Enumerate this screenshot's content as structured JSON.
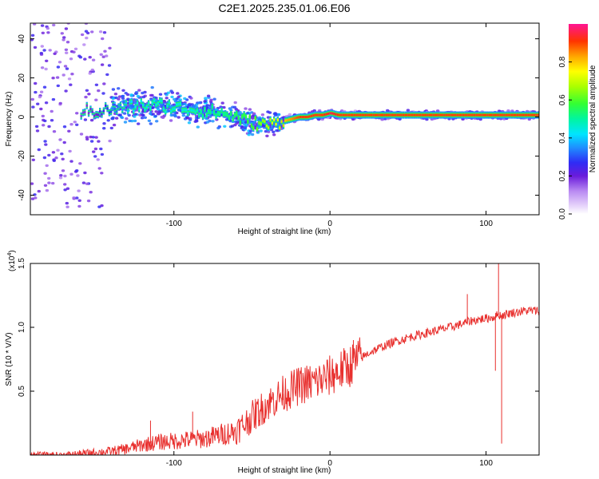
{
  "title": "C2E1.2025.235.01.06.E06",
  "chart_data": [
    {
      "type": "heatmap",
      "title": "C2E1.2025.235.01.06.E06",
      "xlabel": "Height of straight line (km)",
      "ylabel": "Frequency (Hz)",
      "xlim": [
        -192,
        134
      ],
      "ylim": [
        -50,
        48
      ],
      "x_ticks": [
        -100,
        0,
        100
      ],
      "x_tick_labels": [
        "-100",
        "0",
        "100"
      ],
      "y_ticks": [
        -40,
        -20,
        0,
        20,
        40
      ],
      "y_tick_labels": [
        "-40",
        "-20",
        "0",
        "20",
        "40"
      ],
      "colorbar": {
        "label": "Normalized spectral amplitude",
        "range": [
          0,
          1
        ],
        "ticks": [
          0.0,
          0.2,
          0.4,
          0.6,
          0.8
        ],
        "tick_labels": [
          "0.0",
          "0.2",
          "0.4",
          "0.6",
          "0.8"
        ]
      },
      "ridge": {
        "x": [
          -192,
          -150,
          -140,
          -130,
          -120,
          -110,
          -100,
          -90,
          -80,
          -70,
          -60,
          -50,
          -40,
          -35,
          -30,
          -25,
          -20,
          -15,
          -10,
          -5,
          0,
          5,
          10,
          20,
          40,
          60,
          80,
          90,
          100,
          110,
          120,
          134
        ],
        "freq": [
          3,
          3,
          4,
          5,
          6,
          6,
          5,
          4,
          3,
          2,
          0,
          -3,
          -4,
          -3,
          -2,
          -1,
          0,
          0,
          1,
          1,
          2,
          1,
          1,
          1,
          1,
          1,
          1,
          1,
          1,
          1,
          1,
          1
        ],
        "amplitude": [
          0.1,
          0.2,
          0.3,
          0.4,
          0.45,
          0.45,
          0.45,
          0.45,
          0.5,
          0.5,
          0.55,
          0.6,
          0.7,
          0.75,
          0.8,
          0.85,
          0.9,
          0.9,
          0.9,
          0.9,
          0.95,
          0.9,
          0.9,
          0.9,
          0.9,
          0.9,
          0.9,
          0.9,
          0.9,
          0.9,
          0.9,
          0.9
        ]
      }
    },
    {
      "type": "line",
      "xlabel": "Height of straight line (km)",
      "ylabel": "SNR (10 * V/V)",
      "scale_label": "(x10",
      "scale_exponent": "4",
      "scale_close": ")",
      "xlim": [
        -192,
        134
      ],
      "ylim": [
        0,
        15000
      ],
      "x_ticks": [
        -100,
        0,
        100
      ],
      "x_tick_labels": [
        "-100",
        "0",
        "100"
      ],
      "y_ticks": [
        5000,
        10000,
        15000
      ],
      "y_tick_labels": [
        "0.5",
        "1.0",
        "1.5"
      ],
      "color": "#e8302e",
      "series": [
        {
          "name": "SNR",
          "x": [
            -192,
            -180,
            -170,
            -160,
            -150,
            -140,
            -130,
            -120,
            -110,
            -100,
            -90,
            -80,
            -70,
            -60,
            -55,
            -50,
            -45,
            -40,
            -35,
            -30,
            -25,
            -20,
            -15,
            -10,
            -5,
            0,
            5,
            10,
            15,
            20,
            25,
            30,
            40,
            50,
            60,
            70,
            80,
            88,
            90,
            95,
            100,
            105,
            108,
            110,
            112,
            115,
            120,
            125,
            134
          ],
          "y": [
            0,
            0,
            0,
            100,
            200,
            300,
            500,
            800,
            1000,
            1100,
            1200,
            1300,
            1600,
            1900,
            2400,
            3000,
            3500,
            4000,
            4400,
            4800,
            5100,
            5400,
            5600,
            5700,
            5900,
            6200,
            6500,
            6800,
            7200,
            7600,
            8000,
            8300,
            8800,
            9200,
            9500,
            9800,
            10100,
            10400,
            10500,
            10600,
            10700,
            10800,
            11000,
            10900,
            11000,
            11100,
            11200,
            11300,
            11300
          ],
          "spikes": [
            [
              -115,
              2700
            ],
            [
              -88,
              3400
            ],
            [
              -45,
              2300
            ],
            [
              -30,
              4300
            ],
            [
              -22,
              5300
            ],
            [
              -14,
              4400
            ],
            [
              -8,
              5400
            ],
            [
              15,
              9000
            ],
            [
              88,
              12600
            ],
            [
              108,
              15000
            ],
            [
              110,
              900
            ],
            [
              106,
              6600
            ]
          ]
        }
      ]
    }
  ]
}
